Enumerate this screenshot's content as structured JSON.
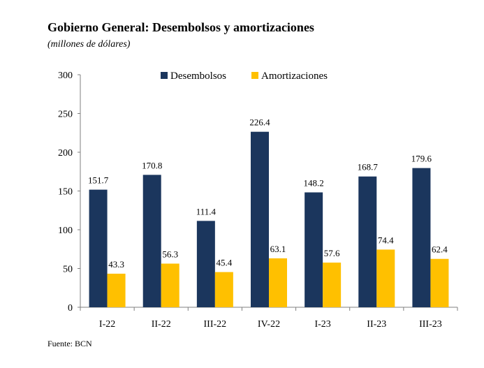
{
  "title": "Gobierno General: Desembolsos y amortizaciones",
  "subtitle": "(millones de dólares)",
  "source": "Fuente: BCN",
  "colors": {
    "desembolsos": "#1b365d",
    "amortizaciones": "#ffc000",
    "axis": "#7f7f7f"
  },
  "chart_data": {
    "type": "bar",
    "categories": [
      "I-22",
      "II-22",
      "III-22",
      "IV-22",
      "I-23",
      "II-23",
      "III-23"
    ],
    "series": [
      {
        "name": "Desembolsos",
        "values": [
          151.7,
          170.8,
          111.4,
          226.4,
          148.2,
          168.7,
          179.6
        ],
        "color": "#1b365d"
      },
      {
        "name": "Amortizaciones",
        "values": [
          43.3,
          56.3,
          45.4,
          63.1,
          57.6,
          74.4,
          62.4
        ],
        "color": "#ffc000"
      }
    ],
    "ylim": [
      0,
      300
    ],
    "yticks": [
      0,
      50,
      100,
      150,
      200,
      250,
      300
    ],
    "legend": "top-center",
    "grid": false,
    "data_labels": true
  }
}
